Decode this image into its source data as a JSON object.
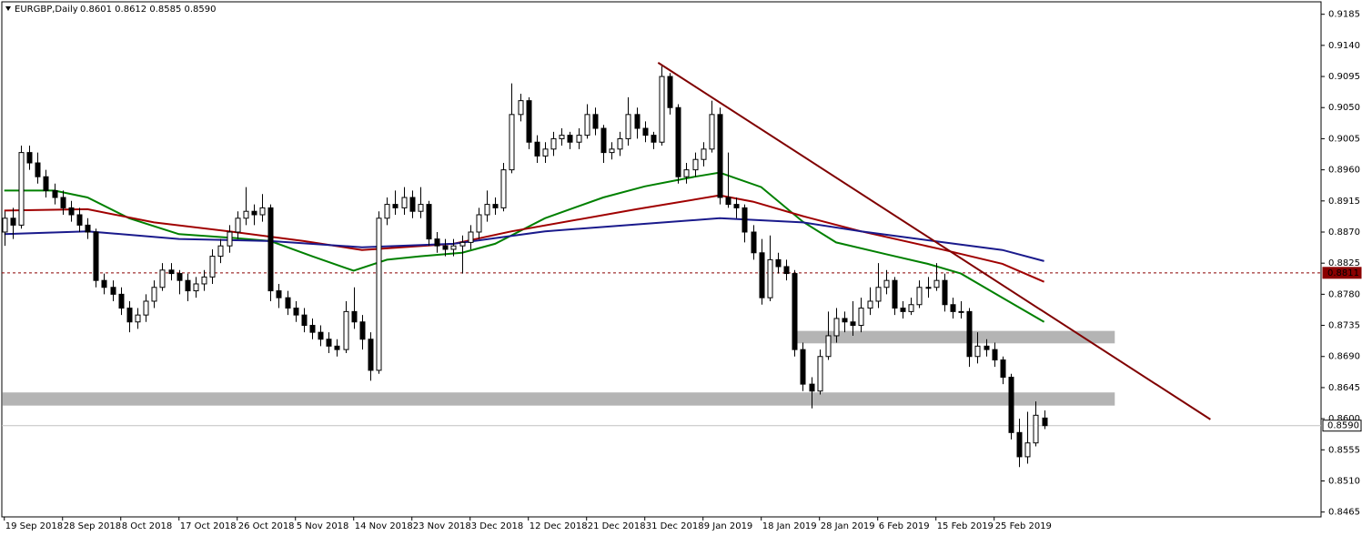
{
  "chart_data": {
    "type": "candlestick",
    "title": "EURGBP,Daily",
    "ohlc_readout": "0.8601 0.8612 0.8585 0.8590",
    "xlim": [
      -0.3,
      158.3
    ],
    "ylim": [
      0.8458,
      0.9203
    ],
    "yticks": [
      0.9185,
      {
        "value": 0.914,
        "label": "0.9140"
      },
      0.9095,
      {
        "value": 0.905,
        "label": "0.9050"
      },
      0.9005,
      {
        "value": 0.896,
        "label": "0.8960"
      },
      0.8915,
      {
        "value": 0.887,
        "label": "0.8870"
      },
      0.8825,
      {
        "value": 0.878,
        "label": "0.8780"
      },
      0.8735,
      {
        "value": 0.869,
        "label": "0.8690"
      },
      0.8645,
      {
        "value": 0.86,
        "label": "0.8600"
      },
      0.8555,
      {
        "value": 0.851,
        "label": "0.8510"
      },
      0.8465
    ],
    "xticks": [
      {
        "value": 0,
        "label": "19 Sep 2018"
      },
      {
        "value": 7,
        "label": "28 Sep 2018"
      },
      {
        "value": 14,
        "label": "8 Oct 2018"
      },
      {
        "value": 21,
        "label": "17 Oct 2018"
      },
      {
        "value": 28,
        "label": "26 Oct 2018"
      },
      {
        "value": 35,
        "label": "5 Nov 2018"
      },
      {
        "value": 42,
        "label": "14 Nov 2018"
      },
      {
        "value": 49,
        "label": "23 Nov 2018"
      },
      {
        "value": 56,
        "label": "3 Dec 2018"
      },
      {
        "value": 63,
        "label": "12 Dec 2018"
      },
      {
        "value": 70,
        "label": "21 Dec 2018"
      },
      {
        "value": 77,
        "label": "31 Dec 2018"
      },
      {
        "value": 84,
        "label": "9 Jan 2019"
      },
      {
        "value": 91,
        "label": "18 Jan 2019"
      },
      {
        "value": 98,
        "label": "28 Jan 2019"
      },
      {
        "value": 105,
        "label": "6 Feb 2019"
      },
      {
        "value": 112,
        "label": "15 Feb 2019"
      },
      {
        "value": 119,
        "label": "25 Feb 2019"
      }
    ],
    "up_color": "#ffffff",
    "down_color": "#000000",
    "ohlc": [
      [
        0.887,
        0.89,
        0.885,
        0.889
      ],
      [
        0.889,
        0.8905,
        0.886,
        0.888
      ],
      [
        0.888,
        0.8995,
        0.8875,
        0.8985
      ],
      [
        0.8985,
        0.8995,
        0.896,
        0.897
      ],
      [
        0.897,
        0.8985,
        0.894,
        0.895
      ],
      [
        0.895,
        0.896,
        0.892,
        0.893
      ],
      [
        0.893,
        0.894,
        0.891,
        0.892
      ],
      [
        0.892,
        0.893,
        0.8895,
        0.8905
      ],
      [
        0.8905,
        0.8915,
        0.8885,
        0.8895
      ],
      [
        0.8895,
        0.8905,
        0.887,
        0.888
      ],
      [
        0.888,
        0.889,
        0.886,
        0.887
      ],
      [
        0.887,
        0.8875,
        0.879,
        0.88
      ],
      [
        0.88,
        0.881,
        0.878,
        0.879
      ],
      [
        0.879,
        0.88,
        0.877,
        0.878
      ],
      [
        0.878,
        0.879,
        0.875,
        0.876
      ],
      [
        0.876,
        0.877,
        0.8725,
        0.874
      ],
      [
        0.874,
        0.876,
        0.873,
        0.875
      ],
      [
        0.875,
        0.878,
        0.874,
        0.877
      ],
      [
        0.877,
        0.88,
        0.876,
        0.879
      ],
      [
        0.879,
        0.8825,
        0.8785,
        0.8815
      ],
      [
        0.8815,
        0.8825,
        0.88,
        0.881
      ],
      [
        0.881,
        0.8815,
        0.878,
        0.88
      ],
      [
        0.88,
        0.881,
        0.877,
        0.8785
      ],
      [
        0.8785,
        0.8805,
        0.8775,
        0.8795
      ],
      [
        0.8795,
        0.8815,
        0.8785,
        0.8805
      ],
      [
        0.8805,
        0.8845,
        0.8795,
        0.8835
      ],
      [
        0.8835,
        0.886,
        0.8825,
        0.885
      ],
      [
        0.885,
        0.888,
        0.884,
        0.887
      ],
      [
        0.887,
        0.89,
        0.886,
        0.889
      ],
      [
        0.889,
        0.8935,
        0.888,
        0.89
      ],
      [
        0.89,
        0.891,
        0.888,
        0.8895
      ],
      [
        0.8895,
        0.8925,
        0.8885,
        0.8905
      ],
      [
        0.8905,
        0.891,
        0.877,
        0.8785
      ],
      [
        0.8785,
        0.8795,
        0.876,
        0.8775
      ],
      [
        0.8775,
        0.8785,
        0.875,
        0.876
      ],
      [
        0.876,
        0.877,
        0.874,
        0.875
      ],
      [
        0.875,
        0.876,
        0.8725,
        0.8735
      ],
      [
        0.8735,
        0.8745,
        0.8715,
        0.8725
      ],
      [
        0.8725,
        0.8735,
        0.8705,
        0.8715
      ],
      [
        0.8715,
        0.8725,
        0.8695,
        0.8705
      ],
      [
        0.8705,
        0.8715,
        0.869,
        0.87
      ],
      [
        0.87,
        0.877,
        0.8695,
        0.8755
      ],
      [
        0.8755,
        0.879,
        0.873,
        0.874
      ],
      [
        0.874,
        0.875,
        0.87,
        0.8715
      ],
      [
        0.8715,
        0.8725,
        0.8655,
        0.867
      ],
      [
        0.867,
        0.89,
        0.8665,
        0.889
      ],
      [
        0.889,
        0.892,
        0.888,
        0.891
      ],
      [
        0.891,
        0.893,
        0.8895,
        0.8905
      ],
      [
        0.8905,
        0.8935,
        0.8895,
        0.892
      ],
      [
        0.892,
        0.893,
        0.889,
        0.89
      ],
      [
        0.89,
        0.8935,
        0.889,
        0.891
      ],
      [
        0.891,
        0.8915,
        0.885,
        0.886
      ],
      [
        0.886,
        0.887,
        0.884,
        0.885
      ],
      [
        0.885,
        0.886,
        0.8835,
        0.8845
      ],
      [
        0.8845,
        0.886,
        0.8835,
        0.885
      ],
      [
        0.885,
        0.8865,
        0.881,
        0.8855
      ],
      [
        0.8855,
        0.888,
        0.8845,
        0.887
      ],
      [
        0.887,
        0.8905,
        0.886,
        0.8895
      ],
      [
        0.8895,
        0.893,
        0.8885,
        0.891
      ],
      [
        0.891,
        0.892,
        0.8895,
        0.8905
      ],
      [
        0.8905,
        0.897,
        0.89,
        0.896
      ],
      [
        0.896,
        0.9085,
        0.8955,
        0.904
      ],
      [
        0.904,
        0.907,
        0.903,
        0.906
      ],
      [
        0.906,
        0.9065,
        0.899,
        0.9
      ],
      [
        0.9,
        0.901,
        0.897,
        0.898
      ],
      [
        0.898,
        0.9,
        0.897,
        0.899
      ],
      [
        0.899,
        0.9015,
        0.898,
        0.9005
      ],
      [
        0.9005,
        0.902,
        0.8995,
        0.901
      ],
      [
        0.901,
        0.9015,
        0.899,
        0.9
      ],
      [
        0.9,
        0.902,
        0.899,
        0.901
      ],
      [
        0.901,
        0.9055,
        0.9005,
        0.904
      ],
      [
        0.904,
        0.905,
        0.901,
        0.902
      ],
      [
        0.902,
        0.9025,
        0.897,
        0.8985
      ],
      [
        0.8985,
        0.9,
        0.8975,
        0.899
      ],
      [
        0.899,
        0.9015,
        0.898,
        0.9005
      ],
      [
        0.9005,
        0.9065,
        0.8995,
        0.904
      ],
      [
        0.904,
        0.905,
        0.9005,
        0.902
      ],
      [
        0.902,
        0.903,
        0.9,
        0.901
      ],
      [
        0.901,
        0.9015,
        0.899,
        0.9
      ],
      [
        0.9,
        0.911,
        0.8995,
        0.9095
      ],
      [
        0.9095,
        0.91,
        0.904,
        0.905
      ],
      [
        0.905,
        0.9055,
        0.894,
        0.895
      ],
      [
        0.895,
        0.897,
        0.894,
        0.896
      ],
      [
        0.896,
        0.8985,
        0.895,
        0.8975
      ],
      [
        0.8975,
        0.9,
        0.8965,
        0.899
      ],
      [
        0.899,
        0.906,
        0.8985,
        0.904
      ],
      [
        0.904,
        0.905,
        0.891,
        0.892
      ],
      [
        0.892,
        0.8985,
        0.8905,
        0.891
      ],
      [
        0.891,
        0.892,
        0.889,
        0.8905
      ],
      [
        0.8905,
        0.891,
        0.8855,
        0.887
      ],
      [
        0.887,
        0.888,
        0.883,
        0.884
      ],
      [
        0.884,
        0.886,
        0.8765,
        0.8775
      ],
      [
        0.8775,
        0.8865,
        0.877,
        0.883
      ],
      [
        0.883,
        0.884,
        0.881,
        0.882
      ],
      [
        0.882,
        0.883,
        0.88,
        0.881
      ],
      [
        0.881,
        0.8815,
        0.869,
        0.87
      ],
      [
        0.87,
        0.871,
        0.864,
        0.865
      ],
      [
        0.865,
        0.866,
        0.8615,
        0.864
      ],
      [
        0.864,
        0.87,
        0.8635,
        0.869
      ],
      [
        0.869,
        0.8755,
        0.8685,
        0.872
      ],
      [
        0.872,
        0.876,
        0.871,
        0.8745
      ],
      [
        0.8745,
        0.8755,
        0.8725,
        0.874
      ],
      [
        0.874,
        0.877,
        0.872,
        0.8735
      ],
      [
        0.8735,
        0.8775,
        0.8725,
        0.876
      ],
      [
        0.876,
        0.879,
        0.875,
        0.877
      ],
      [
        0.877,
        0.8825,
        0.876,
        0.879
      ],
      [
        0.879,
        0.8815,
        0.878,
        0.88
      ],
      [
        0.88,
        0.8805,
        0.875,
        0.876
      ],
      [
        0.876,
        0.877,
        0.8745,
        0.8755
      ],
      [
        0.8755,
        0.8775,
        0.875,
        0.8765
      ],
      [
        0.8765,
        0.88,
        0.876,
        0.879
      ],
      [
        0.879,
        0.8805,
        0.8775,
        0.879
      ],
      [
        0.879,
        0.8825,
        0.8785,
        0.88
      ],
      [
        0.88,
        0.881,
        0.8755,
        0.8765
      ],
      [
        0.8765,
        0.8775,
        0.8745,
        0.8755
      ],
      [
        0.8755,
        0.877,
        0.8745,
        0.8755
      ],
      [
        0.8755,
        0.876,
        0.8675,
        0.869
      ],
      [
        0.869,
        0.8725,
        0.868,
        0.8705
      ],
      [
        0.8705,
        0.8715,
        0.869,
        0.87
      ],
      [
        0.87,
        0.871,
        0.8675,
        0.8685
      ],
      [
        0.8685,
        0.869,
        0.865,
        0.866
      ],
      [
        0.866,
        0.8665,
        0.857,
        0.858
      ],
      [
        0.858,
        0.86,
        0.853,
        0.8545
      ],
      [
        0.8545,
        0.861,
        0.8535,
        0.8565
      ],
      [
        0.8565,
        0.8625,
        0.856,
        0.8605
      ],
      [
        0.8601,
        0.8612,
        0.8585,
        0.859
      ]
    ],
    "series": [
      {
        "color": "#008000",
        "x": [
          0,
          6,
          10,
          15,
          21,
          27,
          32,
          37,
          42,
          46,
          50,
          55,
          59,
          65,
          72,
          77,
          83,
          86,
          91,
          96,
          100,
          106,
          111,
          115,
          120,
          125
        ],
        "values": [
          0.893,
          0.893,
          0.892,
          0.889,
          0.8867,
          0.8862,
          0.8857,
          0.8835,
          0.8814,
          0.883,
          0.8835,
          0.884,
          0.8853,
          0.889,
          0.892,
          0.8936,
          0.895,
          0.8956,
          0.8935,
          0.8885,
          0.8855,
          0.8838,
          0.8824,
          0.881,
          0.8775,
          0.874
        ]
      },
      {
        "color": "#a00000",
        "x": [
          0,
          10,
          18,
          27,
          36,
          43,
          54,
          61,
          76,
          86,
          90,
          96,
          103,
          113,
          120,
          125
        ],
        "values": [
          0.8901,
          0.8903,
          0.8884,
          0.8871,
          0.8857,
          0.8844,
          0.8853,
          0.8871,
          0.8903,
          0.8923,
          0.8914,
          0.8893,
          0.8871,
          0.8844,
          0.8824,
          0.8798
        ]
      },
      {
        "color": "#1a1a8c",
        "x": [
          0,
          10,
          21,
          32,
          43,
          54,
          65,
          76,
          86,
          96,
          103,
          113,
          120,
          125
        ],
        "values": [
          0.8867,
          0.8871,
          0.886,
          0.8857,
          0.8848,
          0.8853,
          0.8871,
          0.8881,
          0.889,
          0.8884,
          0.8871,
          0.8855,
          0.8844,
          0.8828
        ]
      }
    ],
    "trendline": {
      "color": "#800000",
      "x": [
        78.6,
        145
      ],
      "values": [
        0.9115,
        0.8599
      ]
    },
    "zones": [
      {
        "color": "#b4b4b4",
        "x": [
          95.2,
          133.5
        ],
        "values": [
          0.8709,
          0.8727
        ]
      },
      {
        "color": "#b4b4b4",
        "x": [
          -0.2,
          133.5
        ],
        "values": [
          0.8619,
          0.8638
        ]
      }
    ],
    "price_lines": [
      {
        "value": 0.8811,
        "color": "#8b0000",
        "dashed": true
      },
      {
        "value": 0.859,
        "label": "0.8590",
        "color": "#c0c0c0",
        "dashed": false
      }
    ]
  }
}
